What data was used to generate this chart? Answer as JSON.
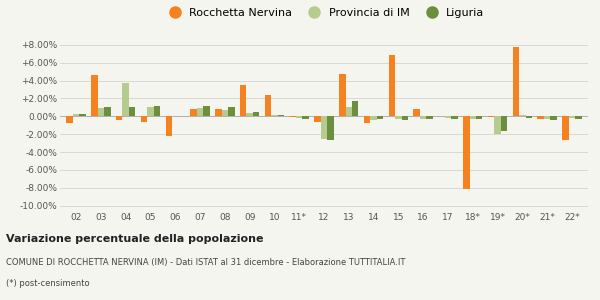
{
  "labels": [
    "02",
    "03",
    "04",
    "05",
    "06",
    "07",
    "08",
    "09",
    "10",
    "11*",
    "12",
    "13",
    "14",
    "15",
    "16",
    "17",
    "18*",
    "19*",
    "20*",
    "21*",
    "22*"
  ],
  "rocchetta": [
    -0.8,
    4.6,
    -0.4,
    -0.6,
    -2.2,
    0.8,
    0.8,
    3.5,
    2.4,
    -0.1,
    -0.6,
    4.7,
    -0.8,
    6.9,
    0.8,
    0.0,
    -8.2,
    -0.1,
    7.8,
    -0.3,
    -2.6
  ],
  "provincia": [
    0.3,
    0.9,
    3.7,
    1.0,
    0.0,
    0.9,
    0.7,
    0.4,
    0.1,
    -0.2,
    -2.5,
    1.0,
    -0.4,
    -0.3,
    -0.3,
    -0.2,
    -0.3,
    -2.0,
    0.2,
    -0.3,
    -0.2
  ],
  "liguria": [
    0.3,
    1.0,
    1.0,
    1.1,
    0.0,
    1.1,
    1.0,
    0.5,
    0.2,
    -0.3,
    -2.7,
    1.7,
    -0.3,
    -0.4,
    -0.3,
    -0.3,
    -0.3,
    -1.7,
    -0.2,
    -0.4,
    -0.3
  ],
  "color_rocchetta": "#f5821e",
  "color_provincia": "#b5cc8e",
  "color_liguria": "#6b8f3e",
  "title": "Variazione percentuale della popolazione",
  "subtitle": "COMUNE DI ROCCHETTA NERVINA (IM) - Dati ISTAT al 31 dicembre - Elaborazione TUTTITALIA.IT",
  "footnote": "(*) post-censimento",
  "bg_color": "#f5f5f0",
  "ylim": [
    -10.5,
    9.0
  ],
  "yticks": [
    -10.0,
    -8.0,
    -6.0,
    -4.0,
    -2.0,
    0.0,
    2.0,
    4.0,
    6.0,
    8.0
  ],
  "legend_labels": [
    "Rocchetta Nervina",
    "Provincia di IM",
    "Liguria"
  ]
}
